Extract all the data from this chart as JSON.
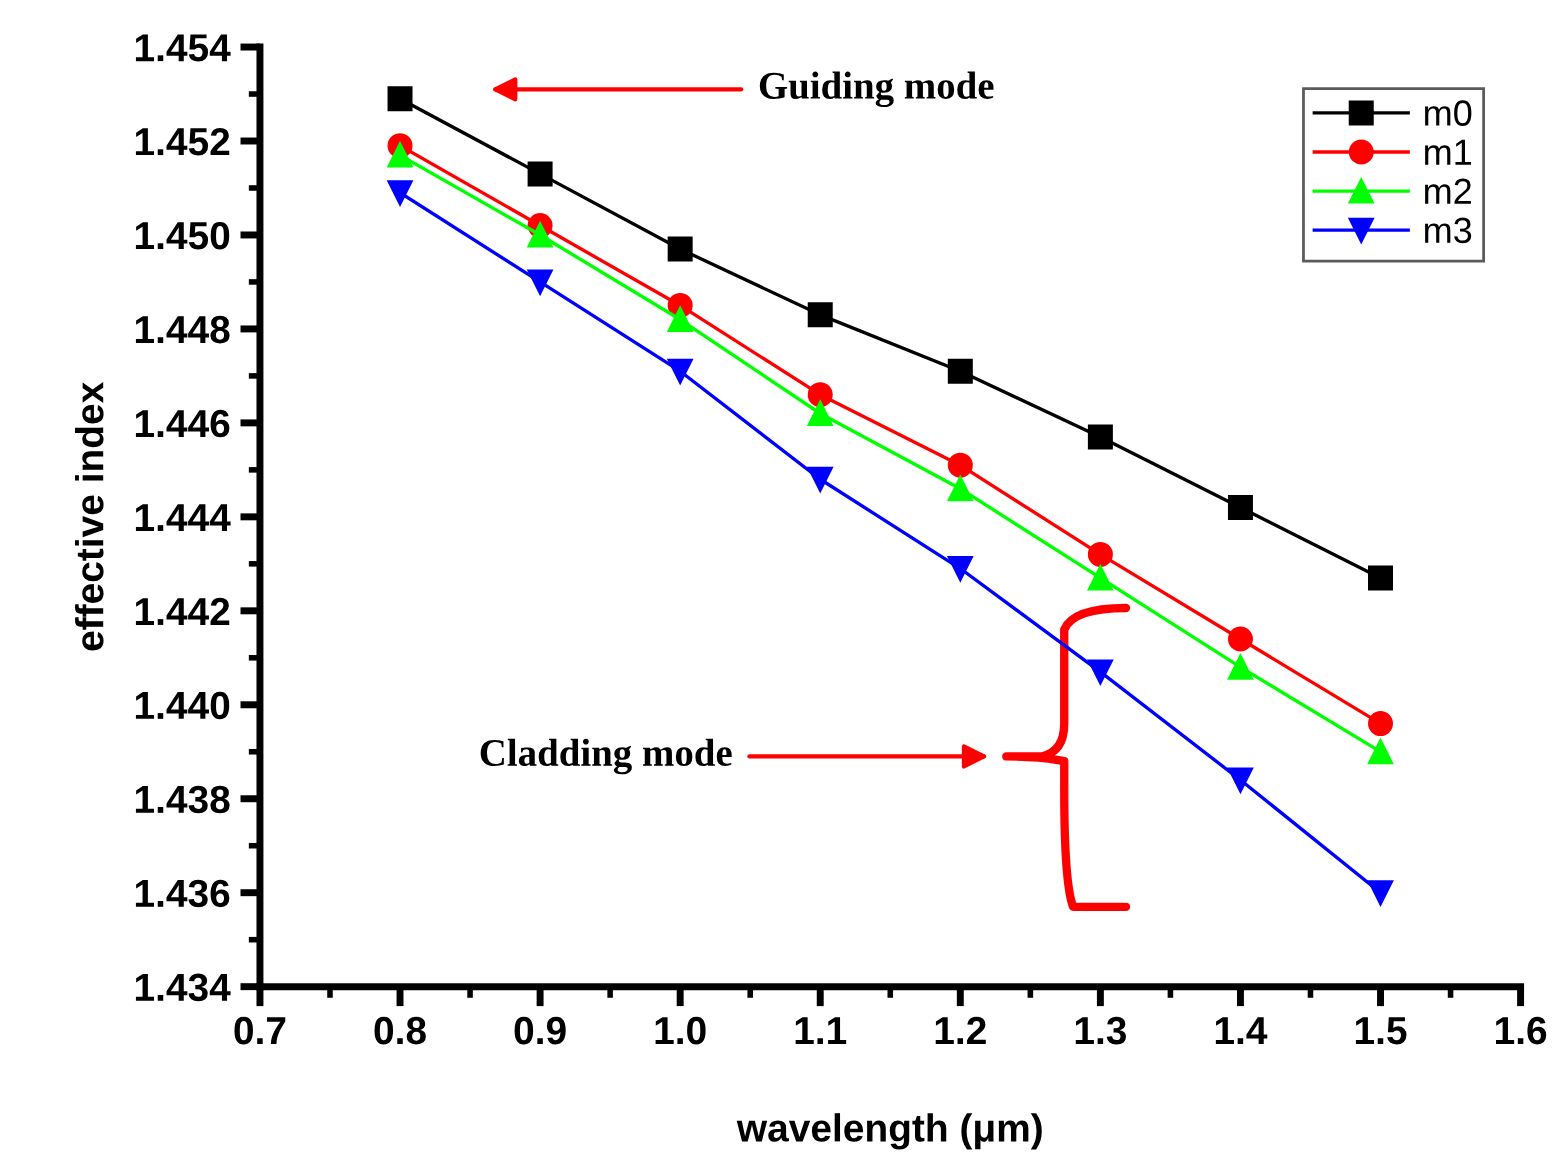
{
  "chart_data": {
    "type": "line",
    "xlabel": "wavelength (μm)",
    "ylabel": "effective index",
    "x": [
      0.8,
      0.9,
      1.0,
      1.1,
      1.2,
      1.3,
      1.4,
      1.5
    ],
    "series": [
      {
        "name": "m0",
        "color": "#000000",
        "marker": "square",
        "values": [
          1.4529,
          1.4513,
          1.4497,
          1.4483,
          1.4471,
          1.4457,
          1.4442,
          1.4427
        ]
      },
      {
        "name": "m1",
        "color": "#ff0000",
        "marker": "circle",
        "values": [
          1.4519,
          1.4502,
          1.4485,
          1.4466,
          1.4451,
          1.4432,
          1.4414,
          1.4396
        ]
      },
      {
        "name": "m2",
        "color": "#00ff00",
        "marker": "triangle",
        "values": [
          1.4517,
          1.45,
          1.4482,
          1.4462,
          1.4446,
          1.4427,
          1.4408,
          1.439
        ]
      },
      {
        "name": "m3",
        "color": "#0000ff",
        "marker": "triangle_down",
        "values": [
          1.4509,
          1.449,
          1.4471,
          1.4448,
          1.4429,
          1.4407,
          1.4384,
          1.436
        ]
      }
    ],
    "xlim": [
      0.7,
      1.6
    ],
    "xticks": [
      0.7,
      0.8,
      0.9,
      {
        "value": 1.0,
        "label": "1.0"
      },
      1.1,
      1.2,
      1.3,
      1.4,
      1.5,
      1.6
    ],
    "ylim": [
      1.434,
      1.454
    ],
    "yticks": [
      1.434,
      1.436,
      1.438,
      {
        "value": 1.44,
        "label": "1.440"
      },
      1.442,
      1.444,
      1.446,
      1.448,
      {
        "value": 1.45,
        "label": "1.450"
      },
      1.452,
      1.454
    ],
    "annotations": [
      "Guiding mode",
      "Cladding mode"
    ],
    "legend": "top right",
    "grid": false,
    "line_style": "solid"
  }
}
